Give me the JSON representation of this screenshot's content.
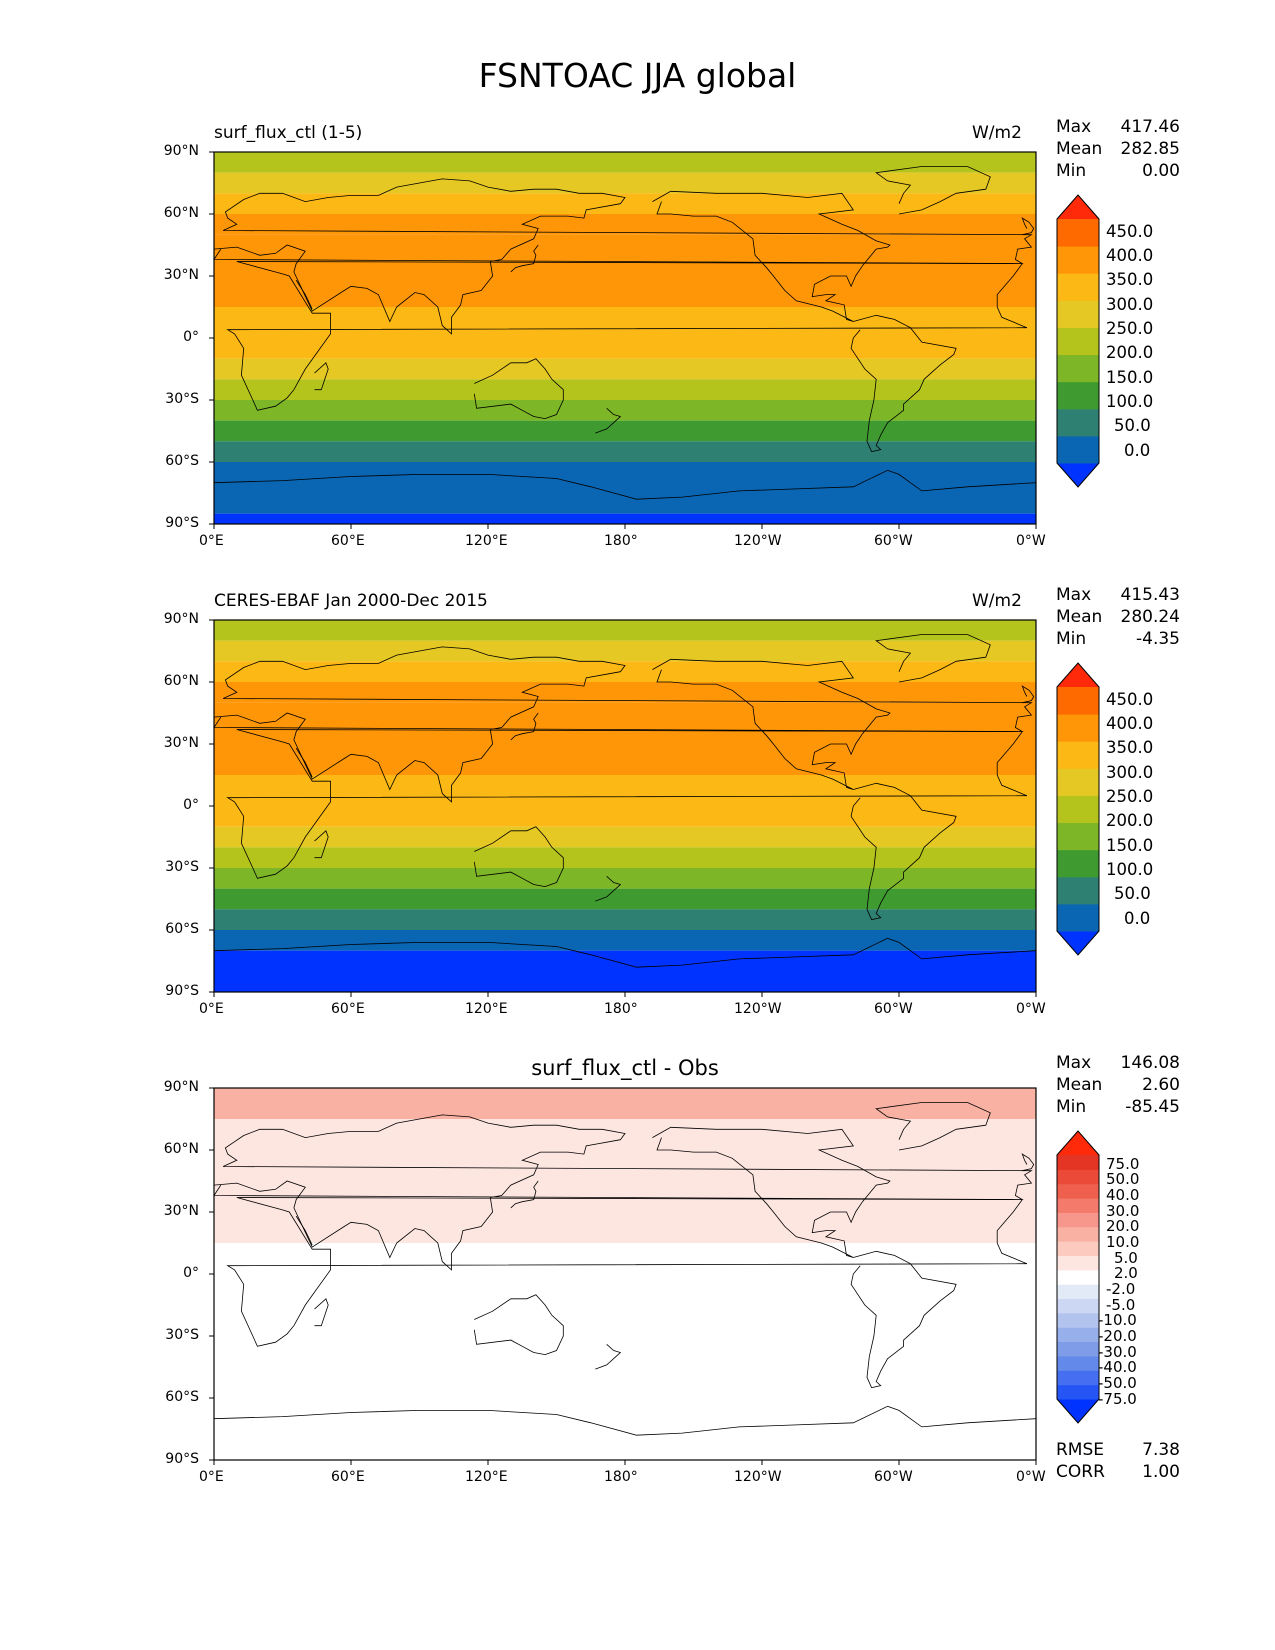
{
  "figure_title": "FSNTOAC JJA global",
  "axis_ticks": {
    "lat": [
      "90°N",
      "60°N",
      "30°N",
      "0°",
      "30°S",
      "60°S",
      "90°S"
    ],
    "lon": [
      "0°E",
      "60°E",
      "120°E",
      "180°",
      "120°W",
      "60°W",
      "0°W"
    ]
  },
  "panels": [
    {
      "left_label": "surf_flux_ctl (1-5)",
      "center_label": "",
      "units": "W/m2",
      "stats": {
        "max_label": "Max",
        "max": "417.46",
        "mean_label": "Mean",
        "mean": "282.85",
        "min_label": "Min",
        "min": "0.00"
      },
      "colorbar_labels": [
        "450.0",
        "400.0",
        "350.0",
        "300.0",
        "250.0",
        "200.0",
        "150.0",
        "100.0",
        "50.0",
        "0.0"
      ]
    },
    {
      "left_label": "CERES-EBAF Jan 2000-Dec 2015",
      "center_label": "",
      "units": "W/m2",
      "stats": {
        "max_label": "Max",
        "max": "415.43",
        "mean_label": "Mean",
        "mean": "280.24",
        "min_label": "Min",
        "min": "-4.35"
      },
      "colorbar_labels": [
        "450.0",
        "400.0",
        "350.0",
        "300.0",
        "250.0",
        "200.0",
        "150.0",
        "100.0",
        "50.0",
        "0.0"
      ]
    },
    {
      "left_label": "",
      "center_label": "surf_flux_ctl - Obs",
      "units": "",
      "stats": {
        "max_label": "Max",
        "max": "146.08",
        "mean_label": "Mean",
        "mean": "2.60",
        "min_label": "Min",
        "min": "-85.45"
      },
      "colorbar_labels": [
        "75.0",
        "50.0",
        "40.0",
        "30.0",
        "20.0",
        "10.0",
        "5.0",
        "2.0",
        "-2.0",
        "-5.0",
        "-10.0",
        "-20.0",
        "-30.0",
        "-40.0",
        "-50.0",
        "-75.0"
      ],
      "metrics": {
        "rmse_label": "RMSE",
        "rmse": "7.38",
        "corr_label": "CORR",
        "corr": "1.00"
      }
    }
  ],
  "colors": {
    "abs_scale": [
      "#0033ff",
      "#0a65b3",
      "#2e8072",
      "#3f9b30",
      "#7db627",
      "#b4c41c",
      "#e6c824",
      "#fcb814",
      "#ff9608",
      "#ff6a00",
      "#ff2a0a"
    ],
    "diff_scale": [
      "#0033ff",
      "#2556f5",
      "#456ef0",
      "#6389ea",
      "#7e9ce8",
      "#97afea",
      "#b2c3ee",
      "#cbd7f3",
      "#e2eaf8",
      "#ffffff",
      "#fde5e0",
      "#fccabe",
      "#f9b1a3",
      "#f7968a",
      "#f47a6b",
      "#ef5f4d",
      "#ea4a37",
      "#e43424",
      "#ff2a0a"
    ]
  },
  "chart_data": [
    {
      "type": "heatmap",
      "name": "surf_flux_ctl (1-5)",
      "units": "W/m2",
      "x_range": [
        "0°E",
        "0°W"
      ],
      "y_range": [
        "90°S",
        "90°N"
      ],
      "levels": [
        0,
        50,
        100,
        150,
        200,
        250,
        300,
        350,
        400,
        450
      ],
      "zonal_bands": [
        {
          "lat": [
            80,
            90
          ],
          "value": 225
        },
        {
          "lat": [
            70,
            80
          ],
          "value": 275
        },
        {
          "lat": [
            60,
            70
          ],
          "value": 325
        },
        {
          "lat": [
            50,
            60
          ],
          "value": 350
        },
        {
          "lat": [
            15,
            50
          ],
          "value": 375
        },
        {
          "lat": [
            -10,
            15
          ],
          "value": 325
        },
        {
          "lat": [
            -20,
            -10
          ],
          "value": 275
        },
        {
          "lat": [
            -30,
            -20
          ],
          "value": 225
        },
        {
          "lat": [
            -40,
            -30
          ],
          "value": 175
        },
        {
          "lat": [
            -50,
            -40
          ],
          "value": 125
        },
        {
          "lat": [
            -60,
            -50
          ],
          "value": 75
        },
        {
          "lat": [
            -85,
            -60
          ],
          "value": 25
        },
        {
          "lat": [
            -90,
            -85
          ],
          "value": 0
        }
      ]
    },
    {
      "type": "heatmap",
      "name": "CERES-EBAF Jan 2000-Dec 2015",
      "units": "W/m2",
      "x_range": [
        "0°E",
        "0°W"
      ],
      "y_range": [
        "90°S",
        "90°N"
      ],
      "levels": [
        0,
        50,
        100,
        150,
        200,
        250,
        300,
        350,
        400,
        450
      ],
      "zonal_bands": [
        {
          "lat": [
            80,
            90
          ],
          "value": 225
        },
        {
          "lat": [
            70,
            80
          ],
          "value": 275
        },
        {
          "lat": [
            60,
            70
          ],
          "value": 325
        },
        {
          "lat": [
            50,
            60
          ],
          "value": 350
        },
        {
          "lat": [
            15,
            50
          ],
          "value": 375
        },
        {
          "lat": [
            -10,
            15
          ],
          "value": 325
        },
        {
          "lat": [
            -20,
            -10
          ],
          "value": 275
        },
        {
          "lat": [
            -30,
            -20
          ],
          "value": 225
        },
        {
          "lat": [
            -40,
            -30
          ],
          "value": 175
        },
        {
          "lat": [
            -50,
            -40
          ],
          "value": 125
        },
        {
          "lat": [
            -60,
            -50
          ],
          "value": 75
        },
        {
          "lat": [
            -70,
            -60
          ],
          "value": 25
        },
        {
          "lat": [
            -90,
            -70
          ],
          "value": 0
        }
      ]
    },
    {
      "type": "heatmap",
      "name": "surf_flux_ctl - Obs",
      "x_range": [
        "0°E",
        "0°W"
      ],
      "y_range": [
        "90°S",
        "90°N"
      ],
      "levels": [
        -75,
        -50,
        -40,
        -30,
        -20,
        -10,
        -5,
        -2,
        2,
        5,
        10,
        20,
        30,
        40,
        50,
        75
      ],
      "zonal_bands": [
        {
          "lat": [
            75,
            90
          ],
          "value": 30
        },
        {
          "lat": [
            15,
            75
          ],
          "value": 7
        },
        {
          "lat": [
            -15,
            15
          ],
          "value": 0
        },
        {
          "lat": [
            -90,
            -15
          ],
          "value": 0
        }
      ]
    }
  ]
}
